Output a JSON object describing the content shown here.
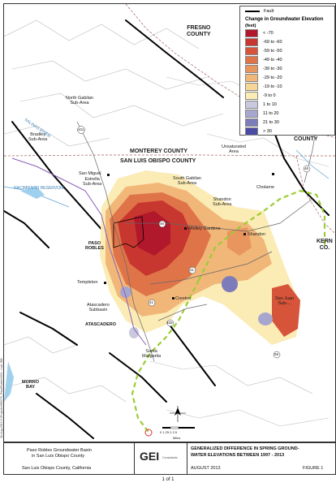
{
  "legend": {
    "fault_label": "Fault",
    "title": "Change in Groundwater Elevation",
    "units": "(feet)",
    "classes": [
      {
        "label": "< -70",
        "color": "#b2182b"
      },
      {
        "label": "-69 to -60",
        "color": "#c8372f"
      },
      {
        "label": "-59 to -50",
        "color": "#d6543a"
      },
      {
        "label": "-49 to -40",
        "color": "#e07449"
      },
      {
        "label": "-39 to -30",
        "color": "#e9955e"
      },
      {
        "label": "-29 to -20",
        "color": "#f1b779"
      },
      {
        "label": "-19 to -10",
        "color": "#f7d596"
      },
      {
        "label": "-9 to 0",
        "color": "#fbebb5"
      },
      {
        "label": "1 to 10",
        "color": "#c9c8de"
      },
      {
        "label": "11 to 20",
        "color": "#a7a6cf"
      },
      {
        "label": "21 to 30",
        "color": "#7d7cbb"
      },
      {
        "label": "> 30",
        "color": "#4b4aa5"
      }
    ]
  },
  "map": {
    "county_fresno": "FRESNO\nCOUNTY",
    "county_monterey": "MONTEREY COUNTY",
    "county_slo": "SAN LUIS OBISPO COUNTY",
    "county_kings": "KINGS\nCOUNTY",
    "county_kern": "KERN\nCO.",
    "north_gabilan": "North Gabilan\nSub-Area",
    "bradley": "Bradley\nSub-Area",
    "unsaturated": "Unsaturated\nArea",
    "estrella": "Estrella\nSub-Area",
    "south_gabilan": "South Gabilan\nSub-Area",
    "shandon_sub": "Shandon\nSub-Area",
    "atascadero_sub": "Atascadero\nSubbasin",
    "san_juan_sub": "San Juan\nSub-...",
    "san_miguel": "San Miguel",
    "paso_robles": "PASO\nROBLES",
    "templeton": "Templeton",
    "whitley": "Whitley Gardens",
    "shandon": "Shandon",
    "cholame": "Cholame",
    "creston": "Creston",
    "atascadero": "ATASCADERO",
    "santa_margarita": "Santa\nMargarita",
    "morro_bay": "MORRO\nBAY",
    "salinas_river": "SALINAS RIVER",
    "nacimiento": "NACIMIENTO RESERVOIR",
    "scale_text": "0   1.25   0           2.5",
    "scale_units": "Miles",
    "hwy_101": "101",
    "hwy_46": "46",
    "hwy_41": "41",
    "hwy_58": "58",
    "hwy_229": "229"
  },
  "titleblock": {
    "basin_line1": "Paso Robles Groundwater Basin",
    "basin_line2": "in San Luis Obispo County",
    "location": "San Luis Obispo County, California",
    "logo": "GEI",
    "logo_sub": "Consultants",
    "title_line1": "GENERALIZED DIFFERENCE IN SPRING GROUND-",
    "title_line2": "WATER ELEVATIONS BETWEEN 1997 - 2013",
    "date": "AUGUST 2013",
    "figure": "FIGURE 1"
  },
  "page_footer": "1 of 1",
  "side_text": "30-Aug-2013 Z:\\Projects\\050176_PasoRobles\\GIS\\...mxd  JBE"
}
